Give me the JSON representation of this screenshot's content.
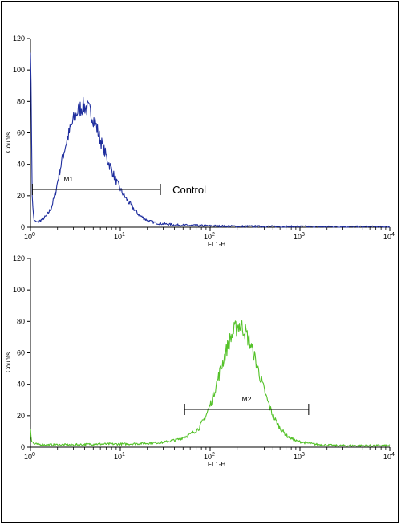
{
  "chart_data": [
    {
      "type": "line",
      "title": "",
      "xlabel": "FL1-H",
      "ylabel": "Counts",
      "xscale": "log",
      "xlim": [
        1,
        10000
      ],
      "ylim": [
        0,
        120
      ],
      "yticks": [
        "0",
        "20",
        "40",
        "60",
        "80",
        "100",
        "120"
      ],
      "xticks": [
        {
          "base": "10",
          "exp": "0"
        },
        {
          "base": "10",
          "exp": "1"
        },
        {
          "base": "10",
          "exp": "2"
        },
        {
          "base": "10",
          "exp": "3"
        },
        {
          "base": "10",
          "exp": "4"
        }
      ],
      "grid": false,
      "series": [
        {
          "color": "#1f2e9e",
          "x": [
            1.0,
            1.05,
            1.1,
            1.2,
            1.35,
            1.5,
            1.7,
            1.9,
            2.1,
            2.4,
            2.7,
            3.0,
            3.3,
            3.6,
            4.0,
            4.4,
            4.8,
            5.3,
            5.8,
            6.5,
            7.3,
            8.2,
            9.2,
            10.5,
            12,
            14,
            16,
            19,
            22,
            26,
            32,
            40,
            55,
            80,
            120,
            200,
            400,
            1000,
            2000,
            5000,
            10000
          ],
          "y": [
            120,
            15,
            4,
            3,
            5,
            7,
            12,
            22,
            35,
            50,
            60,
            68,
            73,
            76,
            77,
            75,
            72,
            66,
            58,
            50,
            42,
            35,
            28,
            22,
            17,
            12,
            8,
            5,
            3.5,
            2.5,
            2,
            1.5,
            1.2,
            1,
            0.8,
            0.6,
            0.5,
            0.4,
            0.3,
            0.3,
            0.2
          ]
        }
      ],
      "markers": [
        {
          "label": "M1",
          "x_start": 1.05,
          "x_end": 28,
          "y": 24,
          "annotation": "Control"
        }
      ]
    },
    {
      "type": "line",
      "title": "",
      "xlabel": "FL1-H",
      "ylabel": "Counts",
      "xscale": "log",
      "xlim": [
        1,
        10000
      ],
      "ylim": [
        0,
        120
      ],
      "yticks": [
        "0",
        "20",
        "40",
        "60",
        "80",
        "100",
        "120"
      ],
      "xticks": [
        {
          "base": "10",
          "exp": "0"
        },
        {
          "base": "10",
          "exp": "1"
        },
        {
          "base": "10",
          "exp": "2"
        },
        {
          "base": "10",
          "exp": "3"
        },
        {
          "base": "10",
          "exp": "4"
        }
      ],
      "grid": false,
      "series": [
        {
          "color": "#55c22a",
          "x": [
            1.0,
            1.03,
            1.1,
            1.5,
            2,
            3,
            5,
            8,
            12,
            20,
            30,
            45,
            60,
            75,
            90,
            105,
            120,
            140,
            160,
            185,
            210,
            240,
            270,
            310,
            360,
            420,
            500,
            600,
            720,
            900,
            1100,
            1400,
            1800,
            2500,
            4000,
            6000,
            10000
          ],
          "y": [
            12,
            4,
            2,
            1.5,
            1.5,
            1.5,
            2,
            2,
            2,
            2.5,
            3,
            5,
            8,
            12,
            20,
            30,
            42,
            55,
            66,
            74,
            78,
            75,
            68,
            58,
            45,
            32,
            20,
            12,
            7,
            4,
            3,
            2,
            1.5,
            1,
            1,
            1,
            1
          ]
        }
      ],
      "markers": [
        {
          "label": "M2",
          "x_start": 52,
          "x_end": 1250,
          "y": 24
        }
      ]
    }
  ]
}
